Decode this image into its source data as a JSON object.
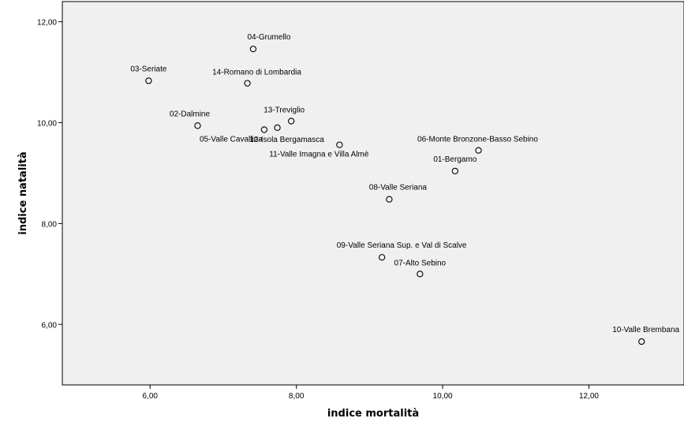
{
  "chart_data": {
    "type": "scatter",
    "xlabel": "indice mortalità",
    "ylabel": "indice natalità",
    "xlim": [
      4.8,
      13.3
    ],
    "ylim": [
      4.8,
      12.4
    ],
    "x_ticks": [
      {
        "value": 6,
        "label": "6,00"
      },
      {
        "value": 8,
        "label": "8,00"
      },
      {
        "value": 10,
        "label": "10,00"
      },
      {
        "value": 12,
        "label": "12,00"
      }
    ],
    "y_ticks": [
      {
        "value": 6,
        "label": "6,00"
      },
      {
        "value": 8,
        "label": "8,00"
      },
      {
        "value": 10,
        "label": "10,00"
      },
      {
        "value": 12,
        "label": "12,00"
      }
    ],
    "grid": false,
    "plot_background": "#f0f0f0",
    "marker_color": "#000000",
    "points": [
      {
        "label": "01-Bergamo",
        "x": 10.17,
        "y": 9.04
      },
      {
        "label": "02-Dalmine",
        "x": 6.65,
        "y": 9.94
      },
      {
        "label": "03-Seriate",
        "x": 5.98,
        "y": 10.83
      },
      {
        "label": "04-Grumello",
        "x": 7.41,
        "y": 11.46
      },
      {
        "label": "05-Valle Cavallina",
        "x": 7.56,
        "y": 9.86
      },
      {
        "label": "06-Monte Bronzone-Basso Sebino",
        "x": 10.49,
        "y": 9.45
      },
      {
        "label": "07-Alto Sebino",
        "x": 9.69,
        "y": 7.0
      },
      {
        "label": "08-Valle Seriana",
        "x": 9.27,
        "y": 8.48
      },
      {
        "label": "09-Valle Seriana Sup. e Val di Scalve",
        "x": 9.17,
        "y": 7.33
      },
      {
        "label": "10-Valle Brembana",
        "x": 12.72,
        "y": 5.66
      },
      {
        "label": "11-Valle Imagna e Villa Almè",
        "x": 8.59,
        "y": 9.56
      },
      {
        "label": "12-Isola Bergamasca",
        "x": 7.74,
        "y": 9.9
      },
      {
        "label": "13-Treviglio",
        "x": 7.93,
        "y": 10.03
      },
      {
        "label": "14-Romano di Lombardia",
        "x": 7.33,
        "y": 10.78
      }
    ]
  }
}
